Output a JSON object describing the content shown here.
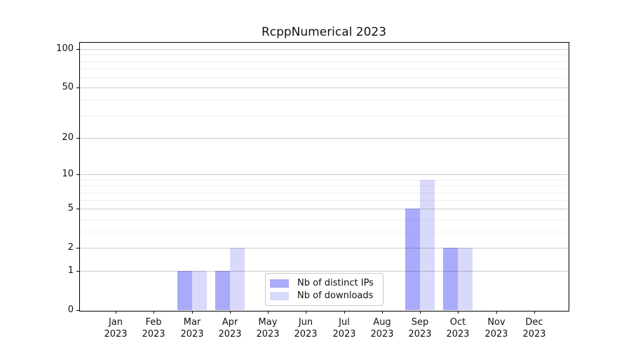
{
  "chart_data": {
    "type": "bar",
    "title": "RcppNumerical 2023",
    "categories": [
      "Jan",
      "Feb",
      "Mar",
      "Apr",
      "May",
      "Jun",
      "Jul",
      "Aug",
      "Sep",
      "Oct",
      "Nov",
      "Dec"
    ],
    "year_label": "2023",
    "series": [
      {
        "name": "Nb of distinct IPs",
        "color": "#aaaafa",
        "values": [
          0,
          0,
          1,
          1,
          0,
          0,
          0,
          0,
          5,
          2,
          0,
          0
        ]
      },
      {
        "name": "Nb of downloads",
        "color": "#d9d9fb",
        "values": [
          0,
          0,
          1,
          2,
          0,
          0,
          0,
          0,
          9,
          2,
          0,
          0
        ]
      }
    ],
    "yscale": "log1p",
    "ylim": [
      0,
      100
    ],
    "yticks": [
      0,
      1,
      2,
      5,
      10,
      20,
      50,
      100
    ],
    "minor_gridlines": [
      3,
      4,
      6,
      7,
      8,
      9,
      30,
      40,
      60,
      70,
      80,
      90
    ],
    "grid": "on",
    "legend_position": "bottom-center",
    "xlabel": "",
    "ylabel": ""
  }
}
